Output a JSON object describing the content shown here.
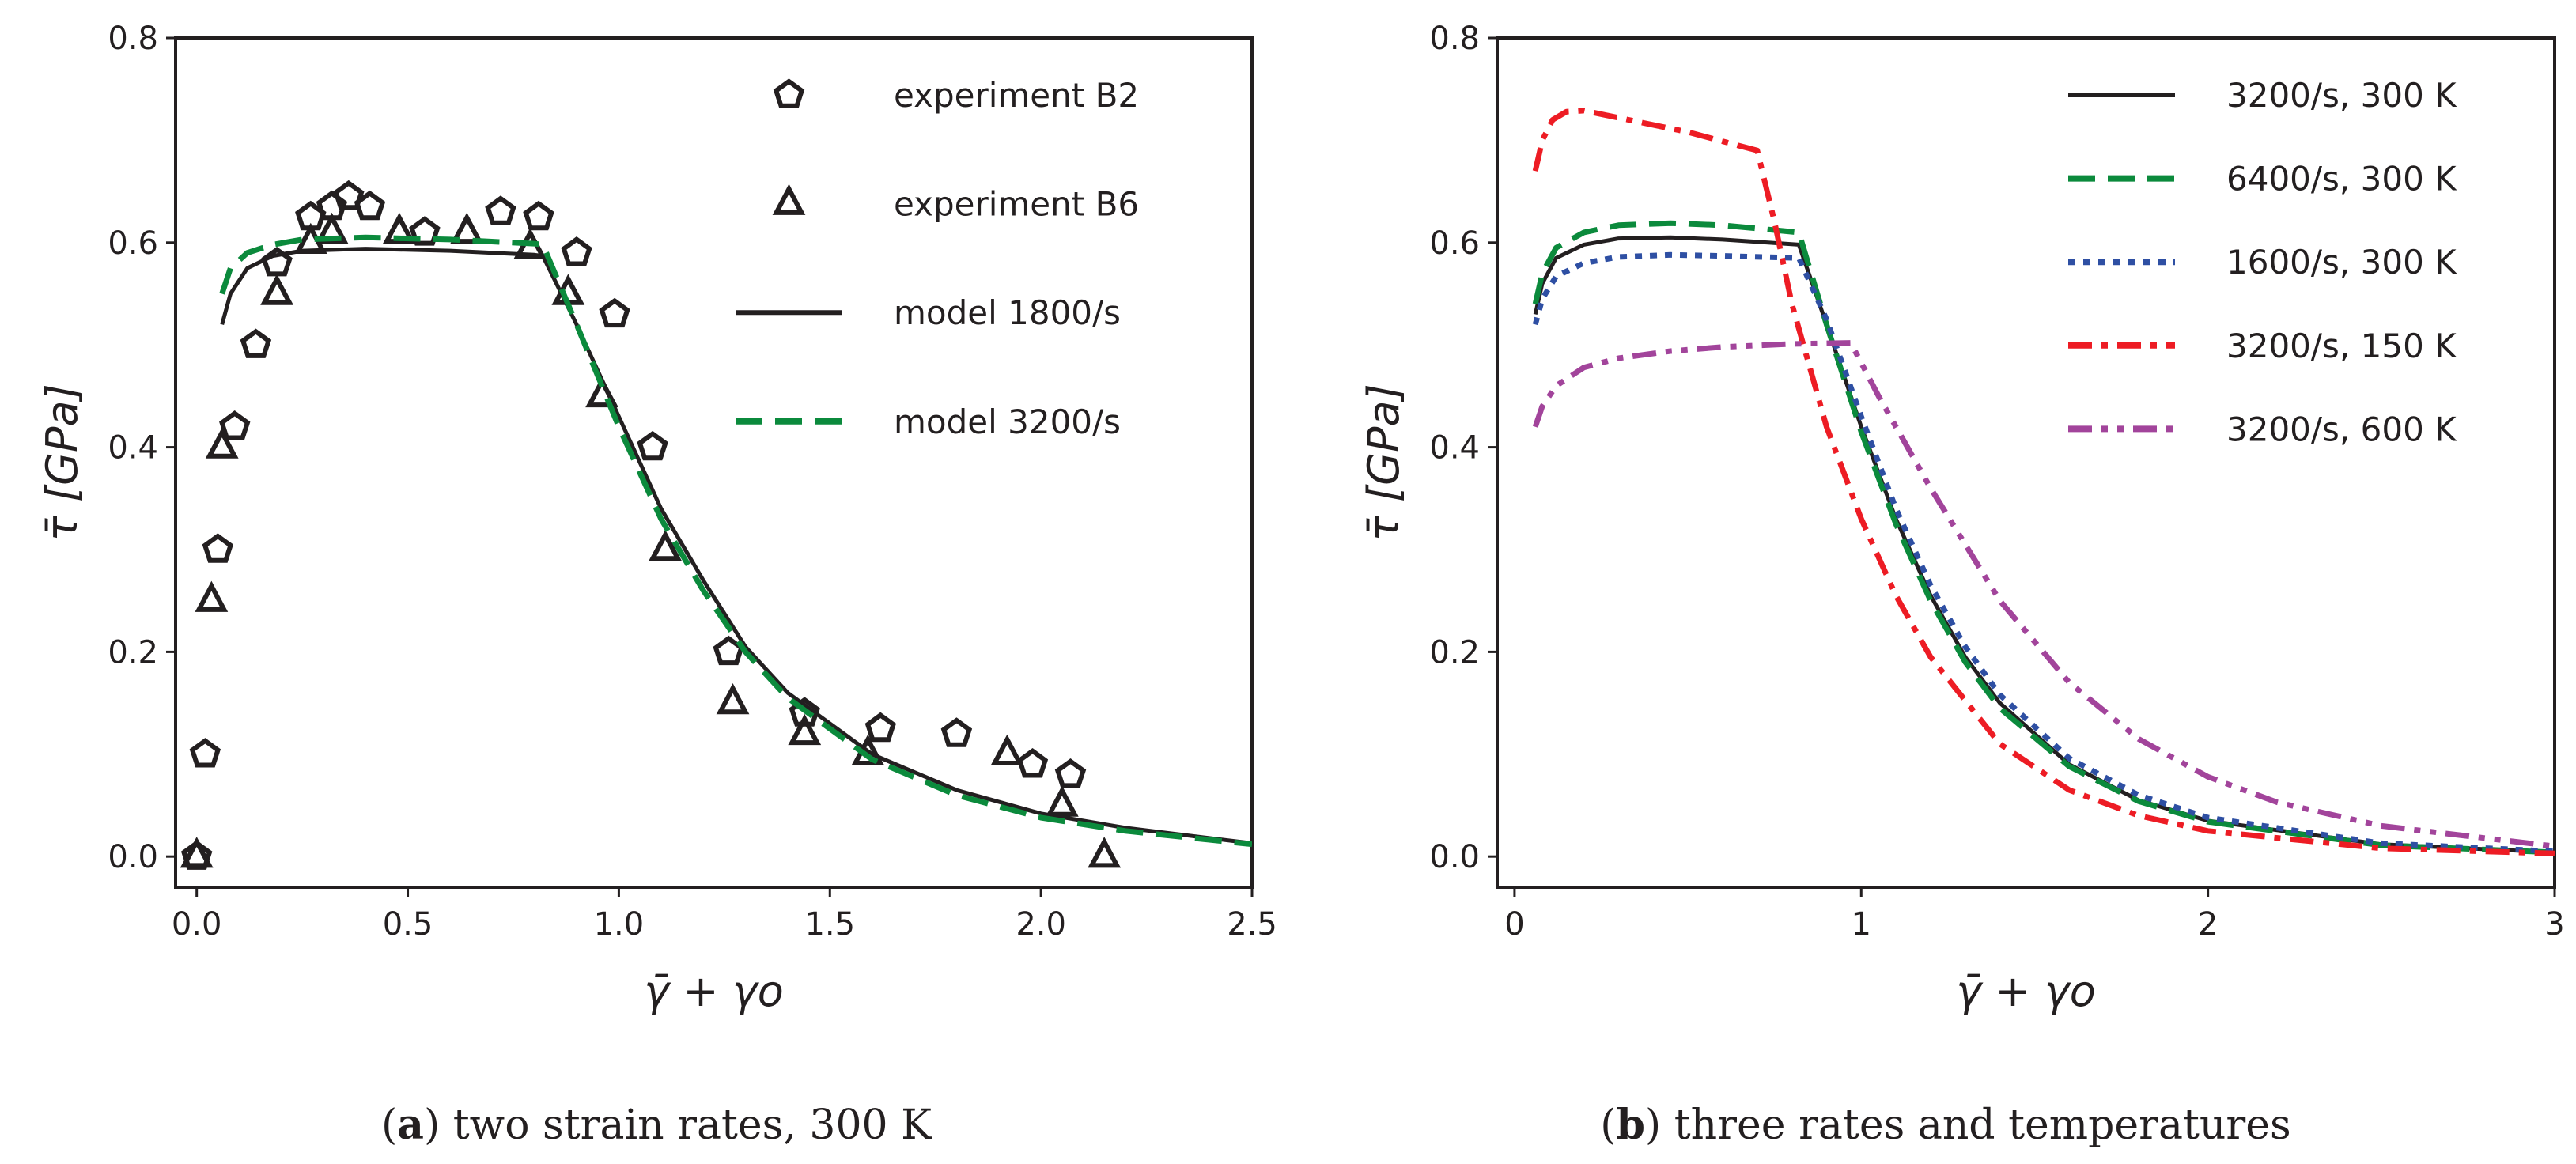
{
  "chart_data": [
    {
      "type": "scatter+line",
      "caption_letter": "a",
      "caption": "two strain rates, 300 K",
      "xlabel": "γ̄ + γo",
      "ylabel": "τ̄ [GPa]",
      "xlim": [
        -0.05,
        2.5
      ],
      "ylim": [
        -0.03,
        0.8
      ],
      "xticks": [
        "0.0",
        "0.5",
        "1.0",
        "1.5",
        "2.0",
        "2.5"
      ],
      "xtick_values": [
        0,
        0.5,
        1.0,
        1.5,
        2.0,
        2.5
      ],
      "yticks": [
        "0.0",
        "0.2",
        "0.4",
        "0.6",
        "0.8"
      ],
      "ytick_values": [
        0,
        0.2,
        0.4,
        0.6,
        0.8
      ],
      "legend_position": "top-right",
      "grid": false,
      "series": [
        {
          "name": "experiment B2",
          "kind": "scatter",
          "marker": "pentagon",
          "color": "#231f20",
          "x": [
            0,
            0.02,
            0.05,
            0.09,
            0.14,
            0.19,
            0.27,
            0.32,
            0.36,
            0.41,
            0.54,
            0.72,
            0.81,
            0.9,
            0.99,
            1.08,
            1.26,
            1.44,
            1.62,
            1.8,
            1.98,
            2.07
          ],
          "y": [
            0,
            0.1,
            0.3,
            0.42,
            0.5,
            0.58,
            0.625,
            0.635,
            0.645,
            0.635,
            0.61,
            0.63,
            0.625,
            0.59,
            0.53,
            0.4,
            0.2,
            0.14,
            0.125,
            0.12,
            0.09,
            0.08
          ]
        },
        {
          "name": "experiment B6",
          "kind": "scatter",
          "marker": "triangle",
          "color": "#231f20",
          "x": [
            0,
            0.035,
            0.06,
            0.19,
            0.27,
            0.32,
            0.48,
            0.64,
            0.79,
            0.88,
            0.96,
            1.11,
            1.27,
            1.44,
            1.59,
            1.92,
            2.05,
            2.15
          ],
          "y": [
            0,
            0.25,
            0.4,
            0.55,
            0.6,
            0.61,
            0.61,
            0.61,
            0.595,
            0.55,
            0.45,
            0.3,
            0.15,
            0.12,
            0.1,
            0.1,
            0.05,
            0.0
          ]
        },
        {
          "name": "model 1800/s",
          "kind": "line",
          "style": "solid",
          "color": "#231f20",
          "x": [
            0.06,
            0.08,
            0.12,
            0.18,
            0.25,
            0.4,
            0.6,
            0.8,
            0.82,
            0.9,
            1.0,
            1.1,
            1.2,
            1.3,
            1.4,
            1.6,
            1.8,
            2.0,
            2.2,
            2.5
          ],
          "y": [
            0.52,
            0.55,
            0.575,
            0.587,
            0.592,
            0.594,
            0.592,
            0.588,
            0.587,
            0.52,
            0.43,
            0.34,
            0.27,
            0.205,
            0.16,
            0.1,
            0.065,
            0.042,
            0.028,
            0.013
          ]
        },
        {
          "name": "model 3200/s",
          "kind": "line",
          "style": "dashed",
          "color": "#0b8a3c",
          "x": [
            0.06,
            0.08,
            0.12,
            0.18,
            0.25,
            0.4,
            0.6,
            0.8,
            0.82,
            0.9,
            1.0,
            1.1,
            1.2,
            1.3,
            1.4,
            1.6,
            1.8,
            2.0,
            2.2,
            2.5
          ],
          "y": [
            0.55,
            0.575,
            0.59,
            0.598,
            0.603,
            0.605,
            0.603,
            0.599,
            0.598,
            0.52,
            0.42,
            0.33,
            0.26,
            0.2,
            0.155,
            0.095,
            0.06,
            0.038,
            0.025,
            0.012
          ]
        }
      ]
    },
    {
      "type": "line",
      "caption_letter": "b",
      "caption": "three rates and temperatures",
      "xlabel": "γ̄ + γo",
      "ylabel": "τ̄ [GPa]",
      "xlim": [
        -0.05,
        3
      ],
      "ylim": [
        -0.03,
        0.8
      ],
      "xticks": [
        "0",
        "1",
        "2",
        "3"
      ],
      "xtick_values": [
        0,
        1,
        2,
        3
      ],
      "yticks": [
        "0.0",
        "0.2",
        "0.4",
        "0.6",
        "0.8"
      ],
      "ytick_values": [
        0,
        0.2,
        0.4,
        0.6,
        0.8
      ],
      "legend_position": "top-right",
      "grid": false,
      "series": [
        {
          "name": "3200/s, 300 K",
          "style": "solid",
          "color": "#231f20",
          "x": [
            0.06,
            0.08,
            0.12,
            0.2,
            0.3,
            0.45,
            0.6,
            0.82,
            0.9,
            1.0,
            1.1,
            1.2,
            1.3,
            1.4,
            1.6,
            1.8,
            2.0,
            2.5,
            3.0
          ],
          "y": [
            0.53,
            0.56,
            0.585,
            0.598,
            0.604,
            0.605,
            0.603,
            0.598,
            0.52,
            0.42,
            0.33,
            0.255,
            0.195,
            0.15,
            0.09,
            0.055,
            0.035,
            0.012,
            0.004
          ]
        },
        {
          "name": "6400/s, 300 K",
          "style": "dashed",
          "color": "#0b8a3c",
          "x": [
            0.06,
            0.08,
            0.12,
            0.2,
            0.3,
            0.45,
            0.6,
            0.82,
            0.9,
            1.0,
            1.1,
            1.2,
            1.3,
            1.4,
            1.6,
            1.8,
            2.0,
            2.5,
            3.0
          ],
          "y": [
            0.54,
            0.57,
            0.595,
            0.61,
            0.617,
            0.619,
            0.617,
            0.61,
            0.52,
            0.415,
            0.325,
            0.25,
            0.19,
            0.145,
            0.088,
            0.054,
            0.034,
            0.011,
            0.004
          ]
        },
        {
          "name": "1600/s, 300 K",
          "style": "dotted",
          "color": "#2e4fa3",
          "x": [
            0.06,
            0.08,
            0.12,
            0.2,
            0.3,
            0.45,
            0.6,
            0.82,
            0.9,
            1.0,
            1.1,
            1.2,
            1.3,
            1.4,
            1.6,
            1.8,
            2.0,
            2.5,
            3.0
          ],
          "y": [
            0.52,
            0.545,
            0.567,
            0.58,
            0.586,
            0.588,
            0.587,
            0.585,
            0.525,
            0.43,
            0.34,
            0.265,
            0.205,
            0.158,
            0.096,
            0.06,
            0.038,
            0.013,
            0.005
          ]
        },
        {
          "name": "3200/s, 150 K",
          "style": "dashdot",
          "color": "#ed1c24",
          "x": [
            0.06,
            0.08,
            0.11,
            0.15,
            0.2,
            0.3,
            0.5,
            0.7,
            0.75,
            0.8,
            0.9,
            1.0,
            1.1,
            1.2,
            1.4,
            1.6,
            1.8,
            2.0,
            2.5,
            3.0
          ],
          "y": [
            0.67,
            0.7,
            0.72,
            0.728,
            0.729,
            0.722,
            0.708,
            0.69,
            0.62,
            0.54,
            0.42,
            0.33,
            0.255,
            0.195,
            0.11,
            0.065,
            0.04,
            0.025,
            0.008,
            0.003
          ]
        },
        {
          "name": "3200/s, 600 K",
          "style": "dashdotdot",
          "color": "#a2449b",
          "x": [
            0.06,
            0.08,
            0.12,
            0.2,
            0.3,
            0.45,
            0.6,
            0.8,
            0.97,
            1.05,
            1.2,
            1.4,
            1.6,
            1.8,
            2.0,
            2.2,
            2.5,
            3.0
          ],
          "y": [
            0.42,
            0.44,
            0.46,
            0.478,
            0.487,
            0.494,
            0.498,
            0.501,
            0.502,
            0.45,
            0.36,
            0.25,
            0.17,
            0.115,
            0.078,
            0.053,
            0.03,
            0.01
          ]
        }
      ]
    }
  ]
}
